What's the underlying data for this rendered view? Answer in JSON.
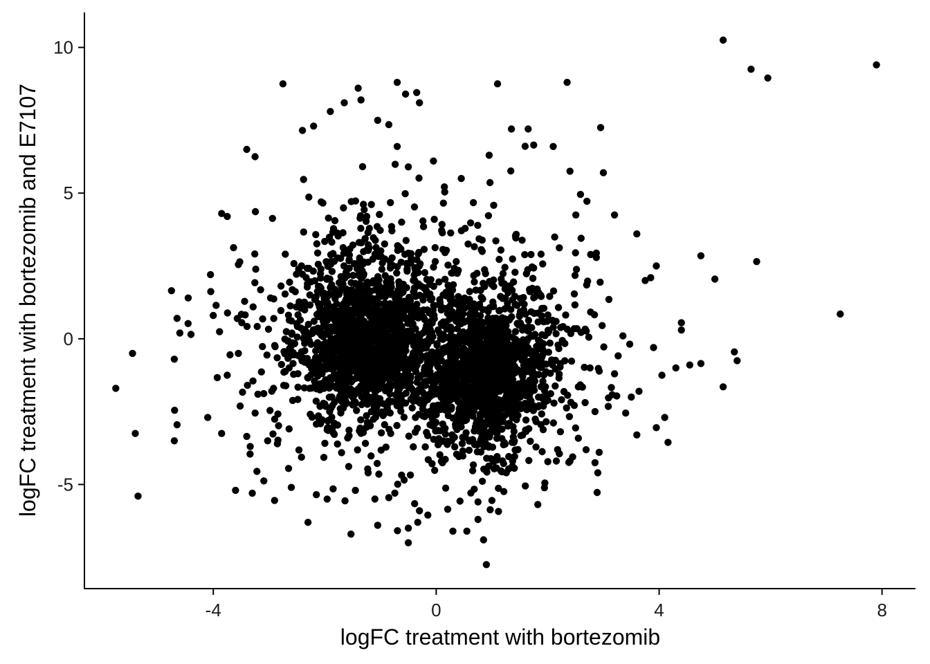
{
  "chart_data": {
    "type": "scatter",
    "title": "",
    "xlabel": "logFC treatment with bortezomib",
    "ylabel": "logFC treatment with bortezomib and E7107",
    "xlim": [
      -6.3,
      8.6
    ],
    "ylim": [
      -8.55,
      11.2
    ],
    "xticks": [
      -4,
      0,
      4,
      8
    ],
    "xtick_labels": [
      "-4",
      "0",
      "4",
      "8"
    ],
    "yticks": [
      -5,
      0,
      5,
      10
    ],
    "ytick_labels": [
      "-5",
      "0",
      "5",
      "10"
    ],
    "grid": false,
    "legend": "none",
    "point_color": "#000000",
    "clusters": [
      {
        "center": [
          -1.3,
          -0.2
        ],
        "sd": [
          0.55,
          1.1
        ],
        "n": 900
      },
      {
        "center": [
          0.9,
          -1.2
        ],
        "sd": [
          0.5,
          1.1
        ],
        "n": 900
      },
      {
        "center": [
          -1.2,
          0.6
        ],
        "sd": [
          0.9,
          1.9
        ],
        "n": 550
      },
      {
        "center": [
          0.8,
          -1.0
        ],
        "sd": [
          0.9,
          1.9
        ],
        "n": 550
      },
      {
        "center": [
          -0.3,
          -0.3
        ],
        "sd": [
          1.5,
          2.3
        ],
        "n": 450
      }
    ],
    "points": [
      [
        5.15,
        10.25
      ],
      [
        5.65,
        9.25
      ],
      [
        5.95,
        8.95
      ],
      [
        7.9,
        9.4
      ],
      [
        7.25,
        0.85
      ],
      [
        5.75,
        2.65
      ],
      [
        5.0,
        2.05
      ],
      [
        4.75,
        2.85
      ],
      [
        5.35,
        -0.45
      ],
      [
        5.4,
        -0.75
      ],
      [
        5.15,
        -1.65
      ],
      [
        4.75,
        -0.85
      ],
      [
        4.55,
        -0.9
      ],
      [
        4.3,
        -1.0
      ],
      [
        4.4,
        0.3
      ],
      [
        4.4,
        0.55
      ],
      [
        4.1,
        -2.7
      ],
      [
        4.05,
        -1.25
      ],
      [
        3.95,
        2.5
      ],
      [
        3.85,
        2.1
      ],
      [
        3.75,
        2.0
      ],
      [
        3.6,
        -3.3
      ],
      [
        3.6,
        3.6
      ],
      [
        3.2,
        4.25
      ],
      [
        3.9,
        -0.3
      ],
      [
        3.5,
        -2.0
      ],
      [
        3.4,
        -2.55
      ],
      [
        2.9,
        -4.6
      ],
      [
        2.85,
        -4.25
      ],
      [
        2.95,
        7.25
      ],
      [
        3.0,
        5.7
      ],
      [
        2.6,
        3.45
      ],
      [
        2.35,
        8.8
      ],
      [
        2.4,
        5.75
      ],
      [
        2.1,
        6.6
      ],
      [
        1.65,
        7.2
      ],
      [
        1.35,
        7.2
      ],
      [
        1.1,
        8.75
      ],
      [
        0.95,
        6.3
      ],
      [
        0.9,
        -7.75
      ],
      [
        0.85,
        -6.9
      ],
      [
        0.75,
        -6.2
      ],
      [
        0.55,
        -6.6
      ],
      [
        0.3,
        -6.6
      ],
      [
        -0.5,
        -7.0
      ],
      [
        -0.5,
        -6.5
      ],
      [
        -1.05,
        -6.4
      ],
      [
        -0.85,
        -5.45
      ],
      [
        -1.1,
        -5.5
      ],
      [
        -2.3,
        -6.3
      ],
      [
        -2.9,
        -5.55
      ],
      [
        -3.3,
        -5.3
      ],
      [
        -3.6,
        -5.2
      ],
      [
        -5.35,
        -5.4
      ],
      [
        -5.4,
        -3.25
      ],
      [
        -5.45,
        -0.5
      ],
      [
        -5.75,
        -1.7
      ],
      [
        -4.7,
        -3.5
      ],
      [
        -4.65,
        -2.95
      ],
      [
        -4.7,
        -0.7
      ],
      [
        -4.65,
        0.7
      ],
      [
        -4.6,
        0.2
      ],
      [
        -4.4,
        0.15
      ],
      [
        -4.45,
        1.4
      ],
      [
        -4.75,
        1.65
      ],
      [
        -3.95,
        1.15
      ],
      [
        -4.05,
        2.2
      ],
      [
        -4.0,
        0.8
      ],
      [
        -3.85,
        4.3
      ],
      [
        -3.75,
        4.2
      ],
      [
        -3.55,
        2.55
      ],
      [
        -3.4,
        6.5
      ],
      [
        -3.25,
        6.25
      ],
      [
        -2.75,
        8.75
      ],
      [
        -1.4,
        8.6
      ],
      [
        -1.65,
        8.1
      ],
      [
        -1.35,
        8.2
      ],
      [
        -0.7,
        8.8
      ],
      [
        -0.35,
        8.45
      ],
      [
        -0.3,
        8.1
      ],
      [
        -1.9,
        7.8
      ],
      [
        -2.4,
        7.15
      ],
      [
        -2.2,
        7.3
      ],
      [
        -0.55,
        8.4
      ],
      [
        -1.05,
        7.5
      ],
      [
        -0.85,
        7.35
      ],
      [
        -0.7,
        6.6
      ],
      [
        -4.1,
        -2.7
      ],
      [
        -3.85,
        -3.25
      ],
      [
        -3.75,
        -1.25
      ],
      [
        -3.7,
        -0.55
      ],
      [
        -3.55,
        -0.5
      ],
      [
        -3.4,
        -3.35
      ],
      [
        -3.2,
        -1.9
      ],
      [
        -2.95,
        -1.8
      ],
      [
        -2.85,
        -3.6
      ],
      [
        -2.65,
        -4.45
      ],
      [
        -2.6,
        -5.1
      ],
      [
        -2.15,
        -5.35
      ],
      [
        -1.85,
        -5.15
      ],
      [
        -1.45,
        -5.2
      ],
      [
        -0.3,
        -5.9
      ],
      [
        -0.15,
        -6.05
      ],
      [
        0.75,
        -5.6
      ],
      [
        1.0,
        -5.55
      ],
      [
        1.6,
        -5.05
      ],
      [
        1.95,
        -4.95
      ],
      [
        2.4,
        -4.2
      ],
      [
        1.75,
        6.65
      ],
      [
        0.45,
        5.5
      ],
      [
        -0.05,
        6.1
      ],
      [
        -0.5,
        5.9
      ],
      [
        3.95,
        -3.05
      ],
      [
        3.2,
        -1.2
      ],
      [
        2.85,
        -2.5
      ],
      [
        3.35,
        0.1
      ],
      [
        3.1,
        1.35
      ],
      [
        2.7,
        1.85
      ],
      [
        2.5,
        2.95
      ],
      [
        2.55,
        -1.65
      ]
    ]
  }
}
